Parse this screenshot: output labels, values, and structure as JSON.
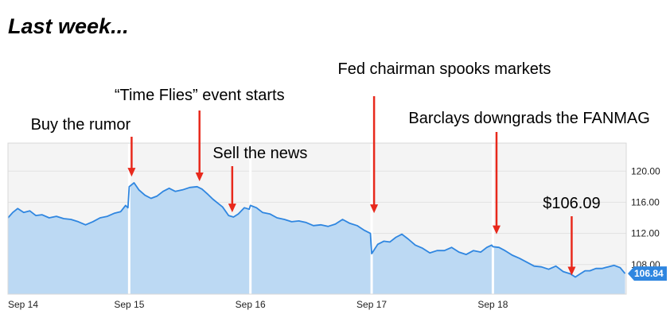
{
  "page": {
    "title": "Last week..."
  },
  "colors": {
    "line": "#2f86e0",
    "area": "#bcd9f3",
    "plot_bg": "#f4f4f4",
    "grid": "#e2e2e2",
    "border": "#d8d8d8",
    "arrow": "#e8291c",
    "badge": "#2f86e0"
  },
  "chart_data": {
    "type": "area",
    "title": "",
    "xlabel": "",
    "ylabel": "",
    "ylim": [
      104.2,
      123.6
    ],
    "xlim": [
      0,
      5.1
    ],
    "x_ticks": [
      {
        "x": 0,
        "label": "Sep 14"
      },
      {
        "x": 1,
        "label": "Sep 15"
      },
      {
        "x": 2,
        "label": "Sep 16"
      },
      {
        "x": 3,
        "label": "Sep 17"
      },
      {
        "x": 4,
        "label": "Sep 18"
      }
    ],
    "y_ticks": [
      {
        "y": 108,
        "label": "108.00"
      },
      {
        "y": 112,
        "label": "112.00"
      },
      {
        "y": 116,
        "label": "116.00"
      },
      {
        "y": 120,
        "label": "120.00"
      }
    ],
    "session_breaks": [
      1,
      2,
      3,
      4
    ],
    "last_price": {
      "value": 106.84,
      "label": "106.84"
    },
    "series": [
      {
        "points": [
          [
            0.0,
            114.0
          ],
          [
            0.04,
            114.7
          ],
          [
            0.08,
            115.2
          ],
          [
            0.13,
            114.7
          ],
          [
            0.18,
            114.9
          ],
          [
            0.23,
            114.3
          ],
          [
            0.28,
            114.4
          ],
          [
            0.34,
            114.0
          ],
          [
            0.4,
            114.2
          ],
          [
            0.46,
            113.9
          ],
          [
            0.52,
            113.8
          ],
          [
            0.58,
            113.5
          ],
          [
            0.64,
            113.1
          ],
          [
            0.7,
            113.5
          ],
          [
            0.76,
            114.0
          ],
          [
            0.82,
            114.2
          ],
          [
            0.88,
            114.6
          ],
          [
            0.93,
            114.8
          ],
          [
            0.97,
            115.6
          ],
          [
            0.99,
            115.3
          ],
          [
            1.0,
            118.0
          ],
          [
            1.04,
            118.5
          ],
          [
            1.08,
            117.6
          ],
          [
            1.13,
            116.9
          ],
          [
            1.18,
            116.5
          ],
          [
            1.23,
            116.8
          ],
          [
            1.28,
            117.4
          ],
          [
            1.33,
            117.8
          ],
          [
            1.38,
            117.4
          ],
          [
            1.44,
            117.6
          ],
          [
            1.5,
            117.9
          ],
          [
            1.56,
            118.0
          ],
          [
            1.6,
            117.7
          ],
          [
            1.65,
            117.0
          ],
          [
            1.69,
            116.4
          ],
          [
            1.73,
            115.9
          ],
          [
            1.77,
            115.4
          ],
          [
            1.82,
            114.3
          ],
          [
            1.86,
            114.1
          ],
          [
            1.9,
            114.5
          ],
          [
            1.95,
            115.3
          ],
          [
            1.99,
            115.1
          ],
          [
            2.0,
            115.6
          ],
          [
            2.05,
            115.3
          ],
          [
            2.1,
            114.7
          ],
          [
            2.16,
            114.5
          ],
          [
            2.22,
            114.0
          ],
          [
            2.28,
            113.8
          ],
          [
            2.34,
            113.5
          ],
          [
            2.4,
            113.6
          ],
          [
            2.46,
            113.4
          ],
          [
            2.52,
            113.0
          ],
          [
            2.58,
            113.1
          ],
          [
            2.64,
            112.9
          ],
          [
            2.7,
            113.2
          ],
          [
            2.76,
            113.8
          ],
          [
            2.82,
            113.3
          ],
          [
            2.88,
            113.0
          ],
          [
            2.94,
            112.4
          ],
          [
            2.99,
            112.0
          ],
          [
            3.0,
            109.4
          ],
          [
            3.05,
            110.6
          ],
          [
            3.1,
            111.0
          ],
          [
            3.15,
            110.9
          ],
          [
            3.2,
            111.5
          ],
          [
            3.25,
            111.9
          ],
          [
            3.3,
            111.3
          ],
          [
            3.36,
            110.5
          ],
          [
            3.42,
            110.1
          ],
          [
            3.48,
            109.5
          ],
          [
            3.54,
            109.8
          ],
          [
            3.6,
            109.8
          ],
          [
            3.66,
            110.2
          ],
          [
            3.72,
            109.6
          ],
          [
            3.78,
            109.3
          ],
          [
            3.84,
            109.8
          ],
          [
            3.9,
            109.6
          ],
          [
            3.95,
            110.2
          ],
          [
            3.99,
            110.5
          ],
          [
            4.0,
            110.3
          ],
          [
            4.05,
            110.2
          ],
          [
            4.1,
            109.8
          ],
          [
            4.16,
            109.2
          ],
          [
            4.22,
            108.8
          ],
          [
            4.28,
            108.3
          ],
          [
            4.34,
            107.8
          ],
          [
            4.4,
            107.7
          ],
          [
            4.46,
            107.4
          ],
          [
            4.52,
            107.8
          ],
          [
            4.58,
            107.1
          ],
          [
            4.64,
            106.8
          ],
          [
            4.68,
            106.4
          ],
          [
            4.72,
            106.8
          ],
          [
            4.76,
            107.2
          ],
          [
            4.8,
            107.2
          ],
          [
            4.85,
            107.5
          ],
          [
            4.9,
            107.5
          ],
          [
            4.95,
            107.7
          ],
          [
            5.0,
            107.9
          ],
          [
            5.05,
            107.6
          ],
          [
            5.09,
            106.84
          ]
        ]
      }
    ],
    "annotations": [
      {
        "text": "Buy the rumor",
        "x": 1.02,
        "y_end": 119.3,
        "label_x_data": 0.6
      },
      {
        "text": "“Time Flies” event starts",
        "x": 1.58,
        "y_end": 118.7,
        "label_x_data": 1.58
      },
      {
        "text": "Sell the news",
        "x": 1.85,
        "y_end": 114.7,
        "label_x_data": 2.08
      },
      {
        "text": "Fed chairman spooks markets",
        "x": 3.02,
        "y_end": 114.6,
        "label_x_data": 3.6
      },
      {
        "text": "Barclays downgrads the FANMAG",
        "x": 4.03,
        "y_end": 111.9,
        "label_x_data": 4.3
      },
      {
        "text": "$106.09",
        "x": 4.65,
        "y_end": 106.6,
        "label_x_data": 4.65
      }
    ]
  }
}
